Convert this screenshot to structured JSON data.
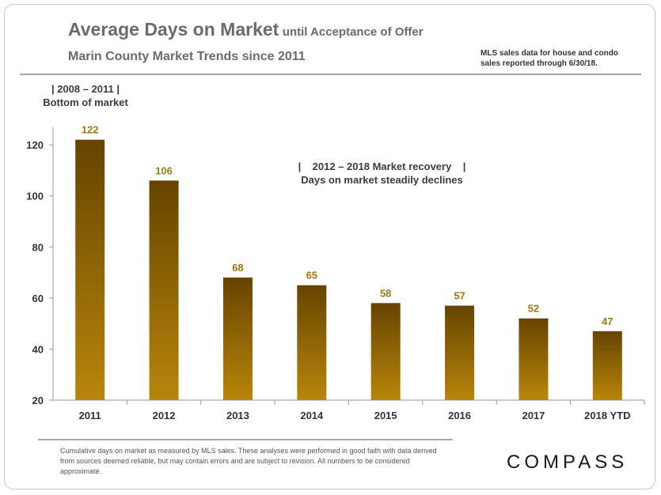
{
  "title_main": "Average Days on Market",
  "title_suffix": "until Acceptance of Offer",
  "subtitle": "Marin County Market Trends since 2011",
  "source_note": "MLS sales data for house and condo\nsales reported through 6/30/18.",
  "annotation_left": "| 2008 – 2011 |\nBottom of market",
  "annotation_mid": "|    2012 – 2018 Market recovery    |\nDays on market steadily declines",
  "footnote": "Cumulative days on market as measured by MLS sales. These analyses were performed in good faith with data derived from sources deemed reliable, but may contain errors and are subject to revision. All numbers to be considered approximate.",
  "logo": "COMPASS",
  "colors": {
    "bar_top": "#664400",
    "bar_bottom": "#b8860b",
    "label": "#9a7a14",
    "axis": "#999999"
  },
  "chart_data": {
    "type": "bar",
    "categories": [
      "2011",
      "2012",
      "2013",
      "2014",
      "2015",
      "2016",
      "2017",
      "2018 YTD"
    ],
    "values": [
      122,
      106,
      68,
      65,
      58,
      57,
      52,
      47
    ],
    "yticks": [
      20,
      40,
      60,
      80,
      100,
      120
    ],
    "ylim": [
      20,
      125
    ],
    "grid": false,
    "xlabel": "",
    "ylabel": ""
  }
}
